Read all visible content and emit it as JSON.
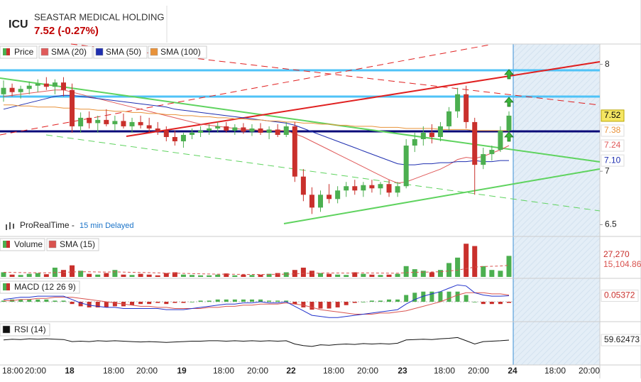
{
  "header": {
    "symbol": "ICU",
    "name": "SEASTAR MEDICAL HOLDING",
    "quote": "7.52 (-0.27%)"
  },
  "source": {
    "name": "ProRealTime -",
    "delay": "15 min Delayed"
  },
  "time_axis": [
    "18:00",
    "20:00",
    "18",
    "18:00",
    "20:00",
    "19",
    "18:00",
    "20:00",
    "22",
    "18:00",
    "20:00",
    "23",
    "18:00",
    "20:00",
    "24",
    "18:00",
    "20:00"
  ],
  "chart_data": [
    {
      "type": "candlestick",
      "name": "Price",
      "up_color": "#4caf50",
      "down_color": "#c9302c",
      "open": [
        7.72,
        7.78,
        7.74,
        7.77,
        7.8,
        7.82,
        7.79,
        7.83,
        7.76,
        7.42,
        7.5,
        7.45,
        7.48,
        7.44,
        7.47,
        7.42,
        7.46,
        7.43,
        7.4,
        7.38,
        7.32,
        7.28,
        7.34,
        7.36,
        7.38,
        7.4,
        7.42,
        7.38,
        7.41,
        7.37,
        7.4,
        7.36,
        7.39,
        7.34,
        7.42,
        6.95,
        6.78,
        6.66,
        6.78,
        6.74,
        6.82,
        6.86,
        6.82,
        6.87,
        6.84,
        6.88,
        6.8,
        6.86,
        7.24,
        7.3,
        7.36,
        7.32,
        7.42,
        7.56,
        7.72,
        7.46,
        7.06,
        7.16,
        7.2,
        7.38
      ],
      "high": [
        7.85,
        7.82,
        7.8,
        7.84,
        7.86,
        7.88,
        7.86,
        7.88,
        7.82,
        7.55,
        7.56,
        7.52,
        7.58,
        7.52,
        7.54,
        7.5,
        7.52,
        7.5,
        7.46,
        7.42,
        7.38,
        7.36,
        7.4,
        7.42,
        7.44,
        7.46,
        7.46,
        7.44,
        7.45,
        7.44,
        7.45,
        7.42,
        7.44,
        7.46,
        7.46,
        7.02,
        6.85,
        6.82,
        6.88,
        6.86,
        6.9,
        6.92,
        6.9,
        6.92,
        6.9,
        6.92,
        6.9,
        7.3,
        7.36,
        7.42,
        7.44,
        7.46,
        7.6,
        7.78,
        7.8,
        7.5,
        7.22,
        7.24,
        7.42,
        7.56
      ],
      "low": [
        7.65,
        7.7,
        7.68,
        7.72,
        7.74,
        7.76,
        7.72,
        7.7,
        7.36,
        7.36,
        7.4,
        7.36,
        7.42,
        7.38,
        7.4,
        7.36,
        7.4,
        7.36,
        7.34,
        7.28,
        7.24,
        7.22,
        7.3,
        7.32,
        7.34,
        7.36,
        7.36,
        7.34,
        7.35,
        7.33,
        7.34,
        7.3,
        7.32,
        7.32,
        6.9,
        6.72,
        6.6,
        6.62,
        6.7,
        6.7,
        6.76,
        6.78,
        6.76,
        6.8,
        6.78,
        6.76,
        6.76,
        6.84,
        7.18,
        7.24,
        7.26,
        7.28,
        7.38,
        7.5,
        7.4,
        6.78,
        7.02,
        7.1,
        7.18,
        7.36
      ],
      "close": [
        7.78,
        7.74,
        7.77,
        7.8,
        7.82,
        7.79,
        7.83,
        7.76,
        7.42,
        7.5,
        7.45,
        7.48,
        7.44,
        7.47,
        7.42,
        7.46,
        7.43,
        7.4,
        7.38,
        7.32,
        7.28,
        7.34,
        7.36,
        7.38,
        7.4,
        7.42,
        7.38,
        7.41,
        7.37,
        7.4,
        7.36,
        7.39,
        7.34,
        7.42,
        6.95,
        6.78,
        6.66,
        6.78,
        6.74,
        6.82,
        6.86,
        6.82,
        6.87,
        6.84,
        6.88,
        6.8,
        6.86,
        7.24,
        7.3,
        7.36,
        7.32,
        7.42,
        7.56,
        7.72,
        7.46,
        7.06,
        7.16,
        7.2,
        7.38,
        7.52
      ],
      "series": [
        {
          "name": "SMA (20)",
          "color": "#e05a5a",
          "last_label": "7.24",
          "values": [
            7.7,
            7.71,
            7.72,
            7.73,
            7.74,
            7.75,
            7.76,
            7.76,
            7.74,
            7.72,
            7.7,
            7.68,
            7.66,
            7.64,
            7.62,
            7.6,
            7.58,
            7.56,
            7.54,
            7.52,
            7.5,
            7.48,
            7.46,
            7.44,
            7.43,
            7.42,
            7.41,
            7.4,
            7.39,
            7.39,
            7.38,
            7.38,
            7.38,
            7.38,
            7.35,
            7.32,
            7.28,
            7.24,
            7.2,
            7.16,
            7.12,
            7.08,
            7.04,
            7.0,
            6.96,
            6.92,
            6.89,
            6.9,
            6.93,
            6.96,
            6.99,
            7.02,
            7.06,
            7.11,
            7.13,
            7.12,
            7.14,
            7.17,
            7.2,
            7.24
          ]
        },
        {
          "name": "SMA (50)",
          "color": "#1f2fb0",
          "last_label": "7.10",
          "values": [
            7.58,
            7.6,
            7.62,
            7.64,
            7.66,
            7.68,
            7.7,
            7.71,
            7.71,
            7.7,
            7.69,
            7.68,
            7.67,
            7.66,
            7.65,
            7.64,
            7.63,
            7.62,
            7.61,
            7.6,
            7.58,
            7.57,
            7.56,
            7.55,
            7.54,
            7.53,
            7.52,
            7.51,
            7.5,
            7.49,
            7.48,
            7.47,
            7.46,
            7.45,
            7.43,
            7.4,
            7.37,
            7.34,
            7.31,
            7.28,
            7.25,
            7.22,
            7.19,
            7.16,
            7.13,
            7.1,
            7.07,
            7.06,
            7.06,
            7.07,
            7.07,
            7.08,
            7.08,
            7.09,
            7.09,
            7.1,
            7.09,
            7.09,
            7.1,
            7.1
          ]
        },
        {
          "name": "SMA (100)",
          "color": "#e8923a",
          "last_label": "7.38",
          "values": [
            7.62,
            7.62,
            7.61,
            7.61,
            7.6,
            7.6,
            7.6,
            7.59,
            7.59,
            7.58,
            7.58,
            7.57,
            7.57,
            7.56,
            7.56,
            7.55,
            7.55,
            7.54,
            7.54,
            7.53,
            7.53,
            7.52,
            7.52,
            7.51,
            7.51,
            7.5,
            7.5,
            7.49,
            7.49,
            7.48,
            7.48,
            7.47,
            7.47,
            7.46,
            7.46,
            7.45,
            7.45,
            7.44,
            7.44,
            7.43,
            7.43,
            7.42,
            7.42,
            7.42,
            7.41,
            7.41,
            7.41,
            7.4,
            7.4,
            7.4,
            7.4,
            7.39,
            7.39,
            7.39,
            7.39,
            7.38,
            7.38,
            7.38,
            7.38,
            7.38
          ]
        }
      ],
      "ylim": [
        6.39,
        8.19
      ],
      "yticks": [
        6.5,
        7,
        8
      ]
    },
    {
      "type": "volume",
      "series": [
        {
          "name": "Volume",
          "last_label": "27,270",
          "values": [
            6000,
            3000,
            2500,
            4000,
            5000,
            3500,
            12000,
            9000,
            15000,
            8000,
            4000,
            3000,
            5000,
            9000,
            3000,
            2500,
            4000,
            3000,
            2000,
            5000,
            6000,
            3000,
            2500,
            2000,
            2000,
            3000,
            4500,
            2000,
            3000,
            2500,
            3000,
            4000,
            5000,
            6000,
            9000,
            12000,
            8000,
            5000,
            4000,
            3000,
            2500,
            6000,
            4000,
            3000,
            2500,
            3000,
            4000,
            14000,
            10000,
            8000,
            6000,
            9000,
            18000,
            25000,
            43000,
            40000,
            14000,
            9000,
            8000,
            27270
          ]
        },
        {
          "name": "SMA (15)",
          "color": "#d9534f",
          "last_label": "15,104.86",
          "values": [
            6000,
            5800,
            5600,
            5400,
            5300,
            5200,
            5600,
            5900,
            6400,
            6700,
            6600,
            6400,
            6300,
            6500,
            6300,
            6000,
            5800,
            5500,
            5200,
            5000,
            4800,
            4600,
            4300,
            4000,
            3800,
            3600,
            3500,
            3400,
            3300,
            3200,
            3100,
            3200,
            3400,
            3600,
            4000,
            4500,
            4800,
            5000,
            5100,
            5100,
            5000,
            5100,
            5200,
            5100,
            5000,
            4900,
            4800,
            5500,
            6000,
            6200,
            6400,
            6800,
            7600,
            8800,
            10800,
            12800,
            13400,
            13800,
            14200,
            15104.86
          ]
        }
      ],
      "ylim": [
        0,
        46000
      ]
    },
    {
      "type": "macd",
      "name": "MACD (12 26 9)",
      "macd_color": "#2233cc",
      "signal_color": "#d9534f",
      "pos_color": "#4caf50",
      "neg_color": "#c9302c",
      "macd": [
        0.02,
        0.03,
        0.04,
        0.04,
        0.05,
        0.05,
        0.05,
        0.05,
        0.02,
        -0.01,
        -0.03,
        -0.04,
        -0.05,
        -0.05,
        -0.06,
        -0.06,
        -0.06,
        -0.06,
        -0.06,
        -0.07,
        -0.07,
        -0.07,
        -0.06,
        -0.05,
        -0.04,
        -0.03,
        -0.02,
        -0.02,
        -0.01,
        -0.01,
        0.0,
        -0.01,
        -0.01,
        0.0,
        -0.04,
        -0.08,
        -0.12,
        -0.13,
        -0.14,
        -0.14,
        -0.13,
        -0.12,
        -0.11,
        -0.1,
        -0.09,
        -0.08,
        -0.07,
        -0.02,
        0.02,
        0.05,
        0.07,
        0.09,
        0.12,
        0.15,
        0.14,
        0.08,
        0.06,
        0.05,
        0.05,
        0.05372
      ],
      "signal": [
        0.01,
        0.01,
        0.02,
        0.02,
        0.03,
        0.03,
        0.04,
        0.04,
        0.04,
        0.03,
        0.02,
        0.01,
        0.0,
        -0.01,
        -0.02,
        -0.03,
        -0.04,
        -0.04,
        -0.05,
        -0.05,
        -0.06,
        -0.06,
        -0.06,
        -0.06,
        -0.05,
        -0.05,
        -0.04,
        -0.04,
        -0.03,
        -0.03,
        -0.02,
        -0.02,
        -0.02,
        -0.01,
        -0.02,
        -0.03,
        -0.05,
        -0.07,
        -0.08,
        -0.09,
        -0.1,
        -0.11,
        -0.11,
        -0.11,
        -0.1,
        -0.1,
        -0.09,
        -0.08,
        -0.06,
        -0.04,
        -0.02,
        0.0,
        0.03,
        0.06,
        0.08,
        0.08,
        0.08,
        0.07,
        0.07,
        0.06
      ],
      "histogram": [
        0.01,
        0.02,
        0.02,
        0.02,
        0.02,
        0.02,
        0.01,
        0.01,
        -0.02,
        -0.04,
        -0.05,
        -0.05,
        -0.05,
        -0.04,
        -0.04,
        -0.03,
        -0.02,
        -0.02,
        -0.01,
        -0.02,
        -0.01,
        -0.01,
        0.0,
        0.01,
        0.01,
        0.02,
        0.02,
        0.02,
        0.02,
        0.02,
        0.02,
        0.01,
        0.01,
        0.01,
        -0.02,
        -0.05,
        -0.07,
        -0.06,
        -0.06,
        -0.05,
        -0.03,
        -0.01,
        0.0,
        0.01,
        0.01,
        0.02,
        0.02,
        0.06,
        0.08,
        0.09,
        0.09,
        0.09,
        0.09,
        0.09,
        0.06,
        0.0,
        -0.02,
        -0.02,
        -0.02,
        -0.01
      ],
      "ylim": [
        -0.17,
        0.17
      ]
    },
    {
      "type": "line",
      "name": "RSI (14)",
      "color": "#111111",
      "values": [
        60,
        62,
        61,
        63,
        62,
        63,
        62,
        61,
        56,
        57,
        56,
        58,
        57,
        58,
        57,
        56,
        55,
        56,
        55,
        54,
        55,
        56,
        57,
        57,
        58,
        58,
        57,
        58,
        57,
        58,
        57,
        58,
        57,
        58,
        50,
        46,
        44,
        48,
        47,
        49,
        50,
        49,
        51,
        50,
        51,
        50,
        52,
        60,
        61,
        62,
        61,
        63,
        64,
        66,
        58,
        50,
        56,
        57,
        58,
        59.62473
      ],
      "ylim": [
        0,
        100
      ]
    }
  ]
}
